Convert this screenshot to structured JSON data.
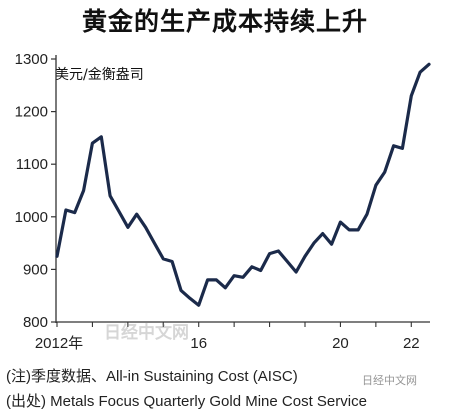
{
  "chart_data": {
    "type": "line",
    "title": "黄金的生产成本持续上升",
    "unit_label": "美元/金衡盎司",
    "ylim": [
      800,
      1300
    ],
    "y_ticks": [
      "800",
      "900",
      "1000",
      "1100",
      "1200",
      "1300"
    ],
    "x_tick_labels": [
      "2012年",
      "16",
      "20",
      "22"
    ],
    "x_tick_positions": [
      2012.0,
      2016.0,
      2020.0,
      2022.0
    ],
    "grid": false,
    "color": "#1b2a4a",
    "series": [
      {
        "x": [
          2012.0,
          2012.25,
          2012.5,
          2012.75,
          2013.0,
          2013.25,
          2013.5,
          2013.75,
          2014.0,
          2014.25,
          2014.5,
          2014.75,
          2015.0,
          2015.25,
          2015.5,
          2015.75,
          2016.0,
          2016.25,
          2016.5,
          2016.75,
          2017.0,
          2017.25,
          2017.5,
          2017.75,
          2018.0,
          2018.25,
          2018.5,
          2018.75,
          2019.0,
          2019.25,
          2019.5,
          2019.75,
          2020.0,
          2020.25,
          2020.5,
          2020.75,
          2021.0,
          2021.25,
          2021.5,
          2021.75,
          2022.0,
          2022.25,
          2022.5
        ],
        "values": [
          925,
          1013,
          1008,
          1050,
          1140,
          1152,
          1040,
          1010,
          980,
          1005,
          980,
          950,
          920,
          915,
          860,
          845,
          832,
          880,
          880,
          865,
          888,
          885,
          905,
          898,
          930,
          935,
          915,
          895,
          925,
          950,
          968,
          948,
          990,
          975,
          975,
          1005,
          1060,
          1085,
          1135,
          1130,
          1230,
          1275,
          1290
        ]
      }
    ]
  },
  "notes": {
    "line1": "(注)季度数据、All-in Sustaining Cost (AISC)",
    "line2": "(出处) Metals Focus Quarterly Gold Mine Cost Service"
  },
  "watermarks": {
    "center": "日经中文网",
    "corner": "日经中文网"
  }
}
